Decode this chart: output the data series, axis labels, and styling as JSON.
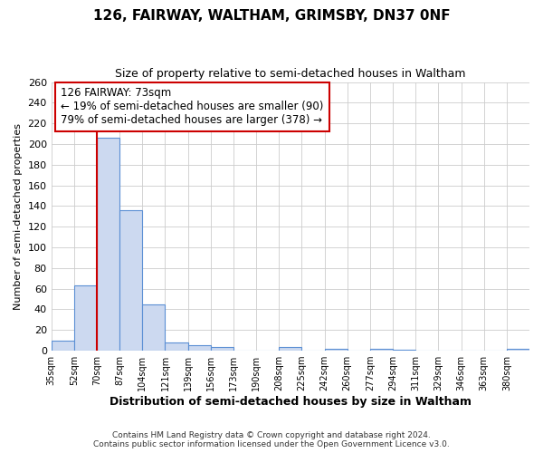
{
  "title": "126, FAIRWAY, WALTHAM, GRIMSBY, DN37 0NF",
  "subtitle": "Size of property relative to semi-detached houses in Waltham",
  "xlabel": "Distribution of semi-detached houses by size in Waltham",
  "ylabel": "Number of semi-detached properties",
  "bin_labels": [
    "35sqm",
    "52sqm",
    "70sqm",
    "87sqm",
    "104sqm",
    "121sqm",
    "139sqm",
    "156sqm",
    "173sqm",
    "190sqm",
    "208sqm",
    "225sqm",
    "242sqm",
    "260sqm",
    "277sqm",
    "294sqm",
    "311sqm",
    "329sqm",
    "346sqm",
    "363sqm",
    "380sqm"
  ],
  "bar_values": [
    10,
    63,
    206,
    136,
    45,
    8,
    5,
    4,
    0,
    0,
    4,
    0,
    2,
    0,
    2,
    1,
    0,
    0,
    0,
    0,
    2
  ],
  "bar_color": "#ccd9f0",
  "bar_edge_color": "#5b8fd4",
  "ylim": [
    0,
    260
  ],
  "yticks": [
    0,
    20,
    40,
    60,
    80,
    100,
    120,
    140,
    160,
    180,
    200,
    220,
    240,
    260
  ],
  "property_line_x": 2.0,
  "property_label": "126 FAIRWAY: 73sqm",
  "smaller_pct": "19%",
  "smaller_count": 90,
  "larger_pct": "79%",
  "larger_count": 378,
  "annotation_box_color": "#ffffff",
  "annotation_box_edge": "#cc0000",
  "red_line_color": "#cc0000",
  "footnote1": "Contains HM Land Registry data © Crown copyright and database right 2024.",
  "footnote2": "Contains public sector information licensed under the Open Government Licence v3.0.",
  "grid_color": "#cccccc",
  "background_color": "#ffffff"
}
